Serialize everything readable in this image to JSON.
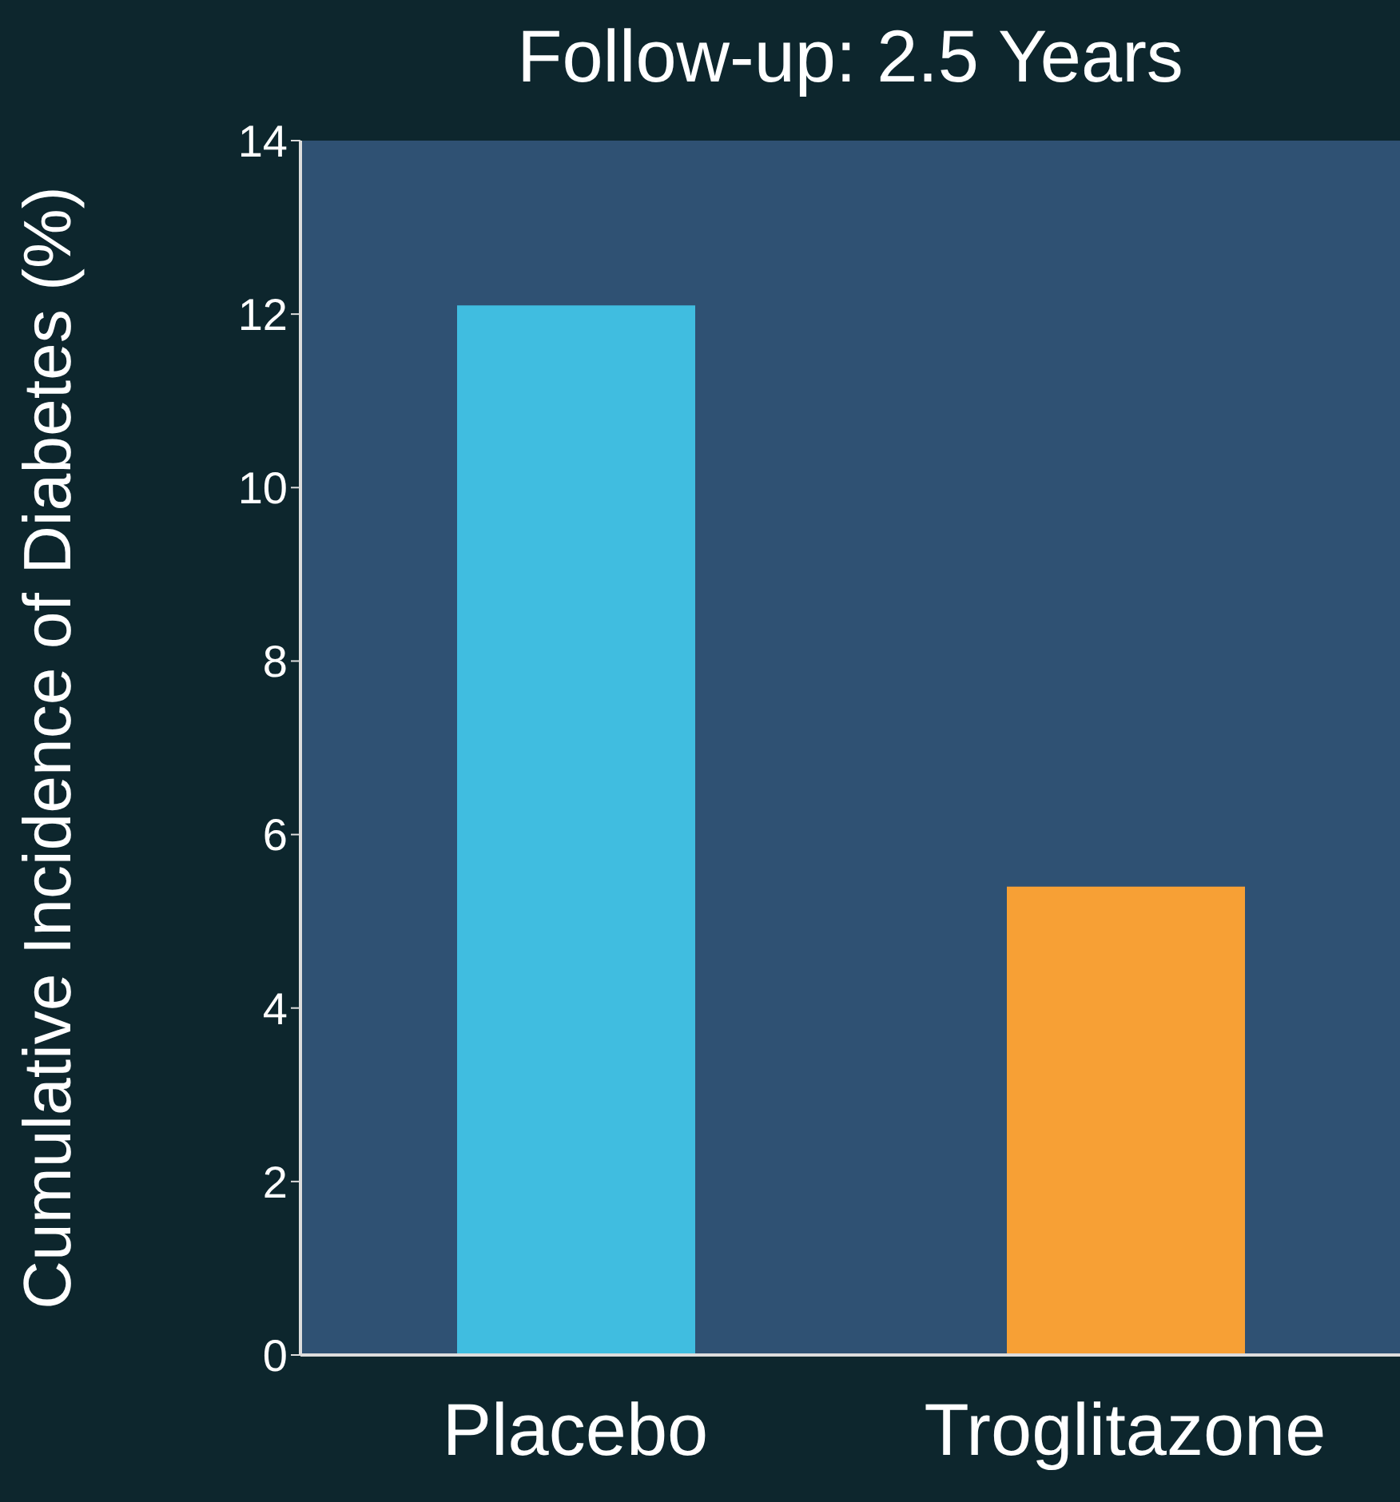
{
  "chart_data": {
    "type": "bar",
    "title": "Follow-up: 2.5 Years",
    "ylabel": "Cumulative Incidence of Diabetes (%)",
    "categories": [
      "Placebo",
      "Troglitazone"
    ],
    "values": [
      12.1,
      5.4
    ],
    "colors": [
      "#40bde0",
      "#f7a035"
    ],
    "ylim": [
      0,
      14
    ],
    "yticks": [
      0,
      2,
      4,
      6,
      8,
      10,
      12,
      14
    ],
    "grid": false
  }
}
